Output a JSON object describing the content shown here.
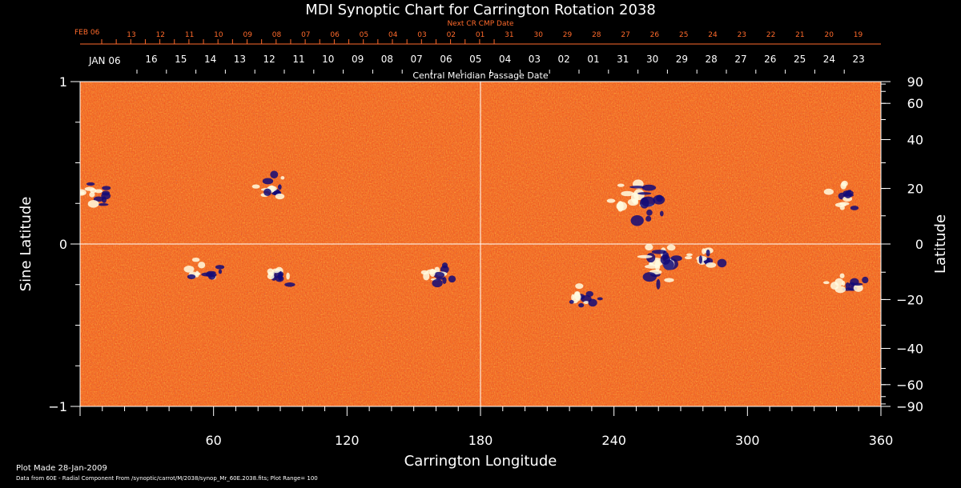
{
  "chart_data": {
    "type": "heatmap",
    "title": "MDI Synoptic Chart for Carrington Rotation 2038",
    "xlabel": "Carrington Longitude",
    "ylabel_left": "Sine Latitude",
    "ylabel_right": "Latitude",
    "xlim": [
      0,
      360
    ],
    "ylim": [
      -1,
      1
    ],
    "x_ticks": [
      "60",
      "120",
      "180",
      "240",
      "300",
      "360"
    ],
    "y_ticks_left": [
      "1",
      "0",
      "−1"
    ],
    "y_ticks_right": [
      "90",
      "60",
      "40",
      "20",
      "0",
      "−20",
      "−40",
      "−60",
      "−90"
    ],
    "y_ticks_right_deg": [
      90,
      60,
      40,
      20,
      0,
      -20,
      -40,
      -60,
      -90
    ],
    "top_axis_title": "Central Meridian Passage Date",
    "top_month_label": "JAN 06",
    "top_dates": [
      "16",
      "15",
      "14",
      "13",
      "12",
      "11",
      "10",
      "09",
      "08",
      "07",
      "06",
      "05",
      "04",
      "03",
      "02",
      "01",
      "31",
      "30",
      "29",
      "28",
      "27",
      "26",
      "25",
      "24",
      "23"
    ],
    "next_cr_axis_title": "Next CR CMP Date",
    "next_cr_month_label": "FEB 06",
    "next_cr_dates": [
      "13",
      "12",
      "11",
      "10",
      "09",
      "08",
      "07",
      "06",
      "05",
      "04",
      "03",
      "02",
      "01",
      "31",
      "30",
      "29",
      "28",
      "27",
      "26",
      "25",
      "24",
      "23",
      "22",
      "21",
      "20",
      "19"
    ],
    "grid_lines": {
      "longitude": 180,
      "sine_latitude": 0
    },
    "colorscale": {
      "negative": "#120a78",
      "background": "#f0501a",
      "positive": "#fffbe0"
    },
    "plot_range": 100,
    "active_regions": [
      {
        "lon": 252,
        "lat_sin": 0.26,
        "label": ""
      },
      {
        "lon": 262,
        "lat_sin": -0.12,
        "label": ""
      },
      {
        "lon": 55,
        "lat_sin": -0.18,
        "label": ""
      },
      {
        "lon": 88,
        "lat_sin": -0.2,
        "label": ""
      },
      {
        "lon": 160,
        "lat_sin": -0.17,
        "label": ""
      },
      {
        "lon": 280,
        "lat_sin": -0.11,
        "label": ""
      },
      {
        "lon": 343,
        "lat_sin": 0.3,
        "label": ""
      },
      {
        "lon": 88,
        "lat_sin": 0.35,
        "label": ""
      },
      {
        "lon": 8,
        "lat_sin": 0.32,
        "label": ""
      },
      {
        "lon": 345,
        "lat_sin": -0.25,
        "label": ""
      },
      {
        "lon": 225,
        "lat_sin": -0.32,
        "label": ""
      }
    ]
  },
  "footer": {
    "plot_made": "Plot Made 28-Jan-2009",
    "data_source": "Data from 60E - Radial Component From /synoptic/carrot/M/2038/synop_Mr_60E.2038.fits; Plot Range=  100"
  }
}
